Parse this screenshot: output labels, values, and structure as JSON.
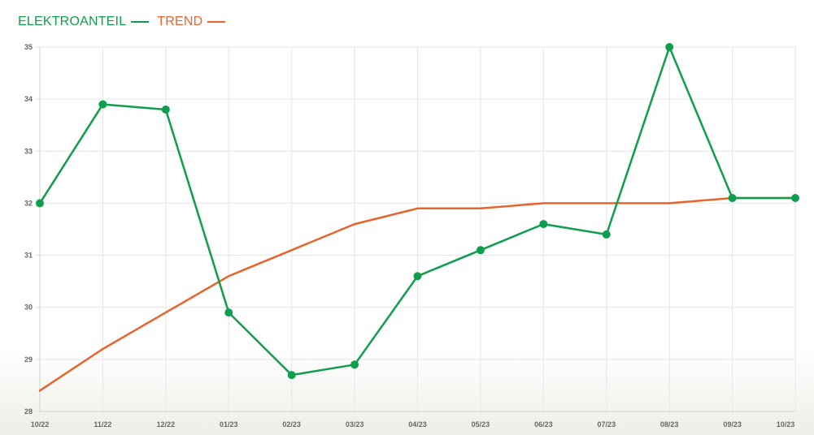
{
  "legend": {
    "items": [
      {
        "label": "ELEKTROANTEIL",
        "color": "#0f9d4e"
      },
      {
        "label": "TREND",
        "color": "#e8642c"
      }
    ]
  },
  "chart_data": {
    "type": "line",
    "categories": [
      "10/22",
      "11/22",
      "12/22",
      "01/23",
      "02/23",
      "03/23",
      "04/23",
      "05/23",
      "06/23",
      "07/23",
      "08/23",
      "09/23",
      "10/23"
    ],
    "ylim": [
      28,
      35
    ],
    "yticks": [
      28,
      29,
      30,
      31,
      32,
      33,
      34,
      35
    ],
    "grid": true,
    "legend_position": "top-left",
    "series": [
      {
        "name": "ELEKTROANTEIL",
        "color": "#0f9d4e",
        "markers": true,
        "values": [
          32.0,
          33.9,
          33.8,
          29.9,
          28.7,
          28.9,
          30.6,
          31.1,
          31.6,
          31.4,
          35.0,
          32.1,
          32.1
        ]
      },
      {
        "name": "TREND",
        "color": "#e8642c",
        "markers": false,
        "values": [
          28.4,
          29.2,
          29.9,
          30.6,
          31.1,
          31.6,
          31.9,
          31.9,
          32.0,
          32.0,
          32.0,
          32.1,
          32.1
        ]
      }
    ]
  }
}
